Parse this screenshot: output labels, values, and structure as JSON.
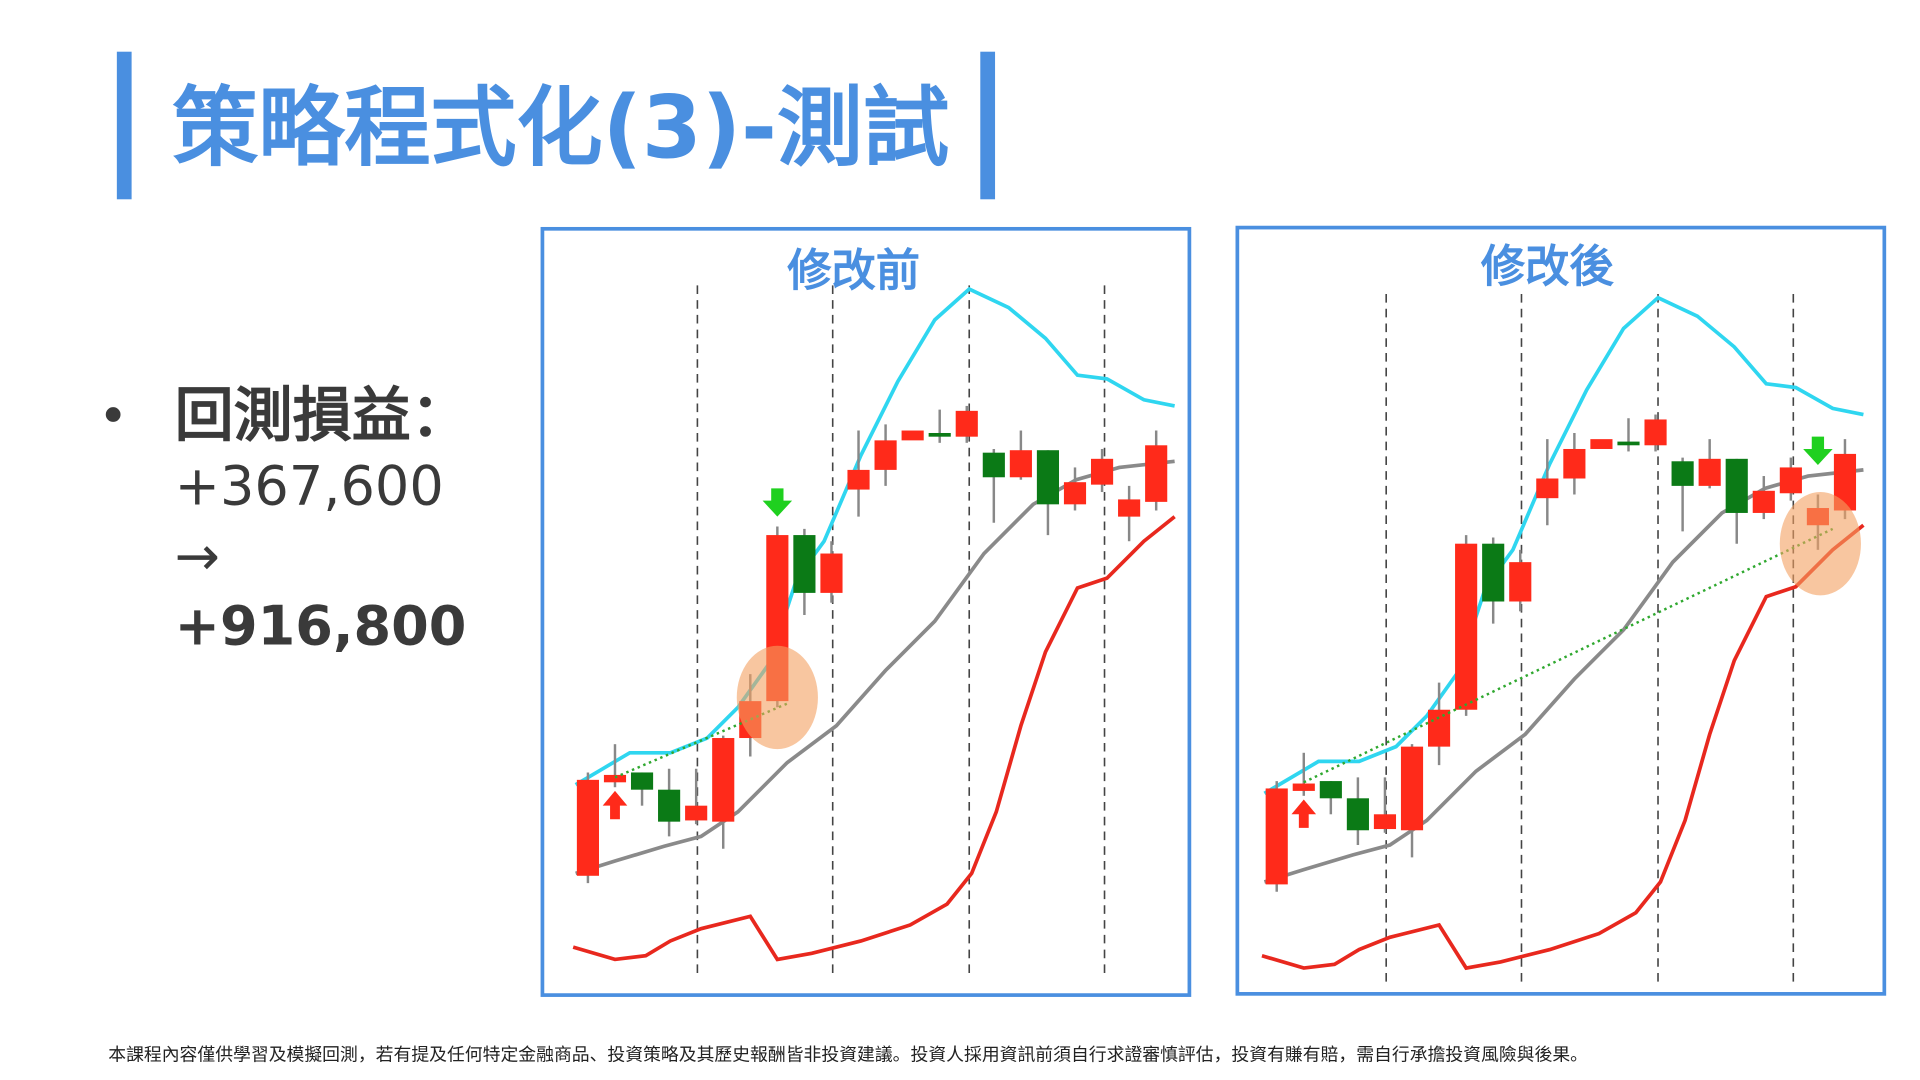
{
  "header": {
    "title": "策略程式化(3)-測試"
  },
  "summary": {
    "label": "回測損益：",
    "before": "+367,600",
    "arrow": "→",
    "after": "+916,800"
  },
  "panels": [
    {
      "title": "修改前"
    },
    {
      "title": "修改後"
    }
  ],
  "footer": {
    "disclaimer": "本課程內容僅供學習及模擬回測，若有提及任何特定金融商品、投資策略及其歷史報酬皆非投資建議。投資人採用資訊前須自行求證審慎評估，投資有賺有賠，需自行承擔投資風險與後果。"
  }
}
